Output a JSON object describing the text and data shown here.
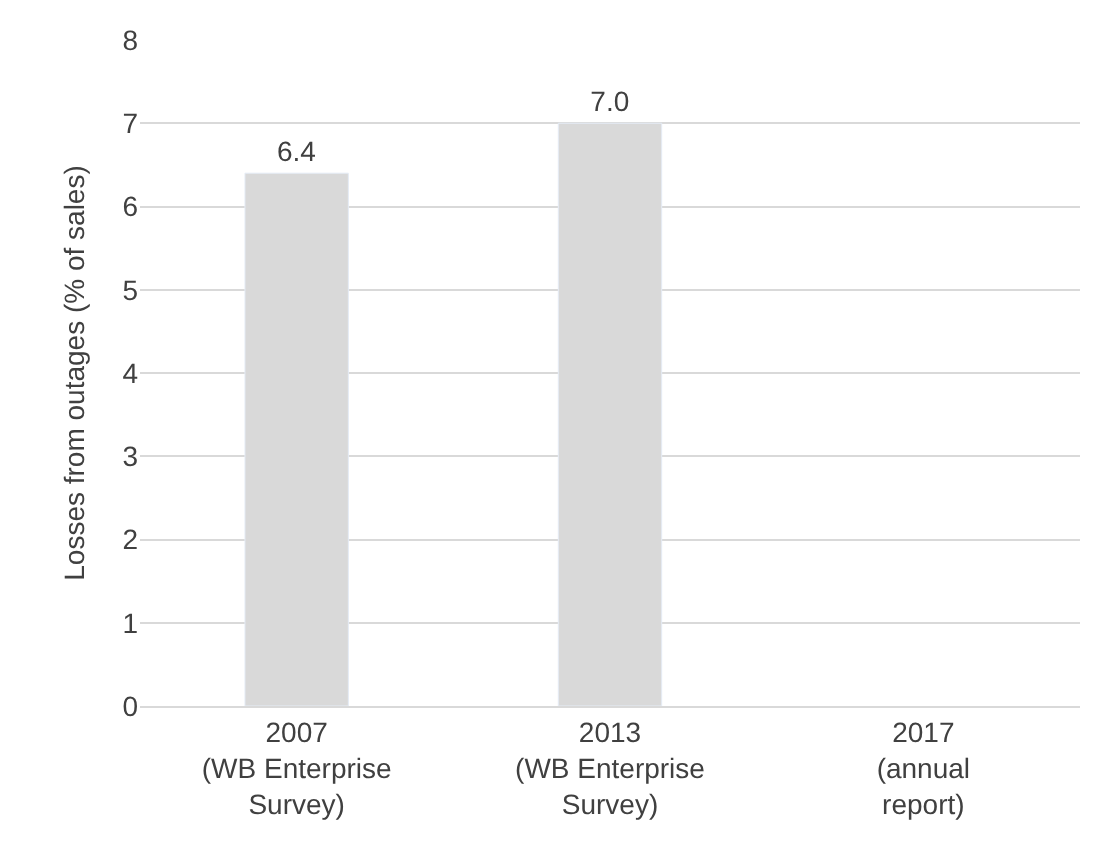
{
  "chart_data": {
    "type": "bar",
    "ylabel": "Losses from outages (% of sales)",
    "categories": [
      "2007\n(WB Enterprise\nSurvey)",
      "2013\n(WB Enterprise\nSurvey)",
      "2017\n(annual\nreport)"
    ],
    "values": [
      6.4,
      7.0,
      null
    ],
    "value_labels": [
      "6.4",
      "7.0",
      null
    ],
    "color": "#d9d9d9",
    "ylim": [
      0,
      8
    ],
    "yticks": [
      0,
      1,
      2,
      3,
      4,
      5,
      6,
      7,
      8
    ],
    "grid": "y",
    "legend": false
  }
}
